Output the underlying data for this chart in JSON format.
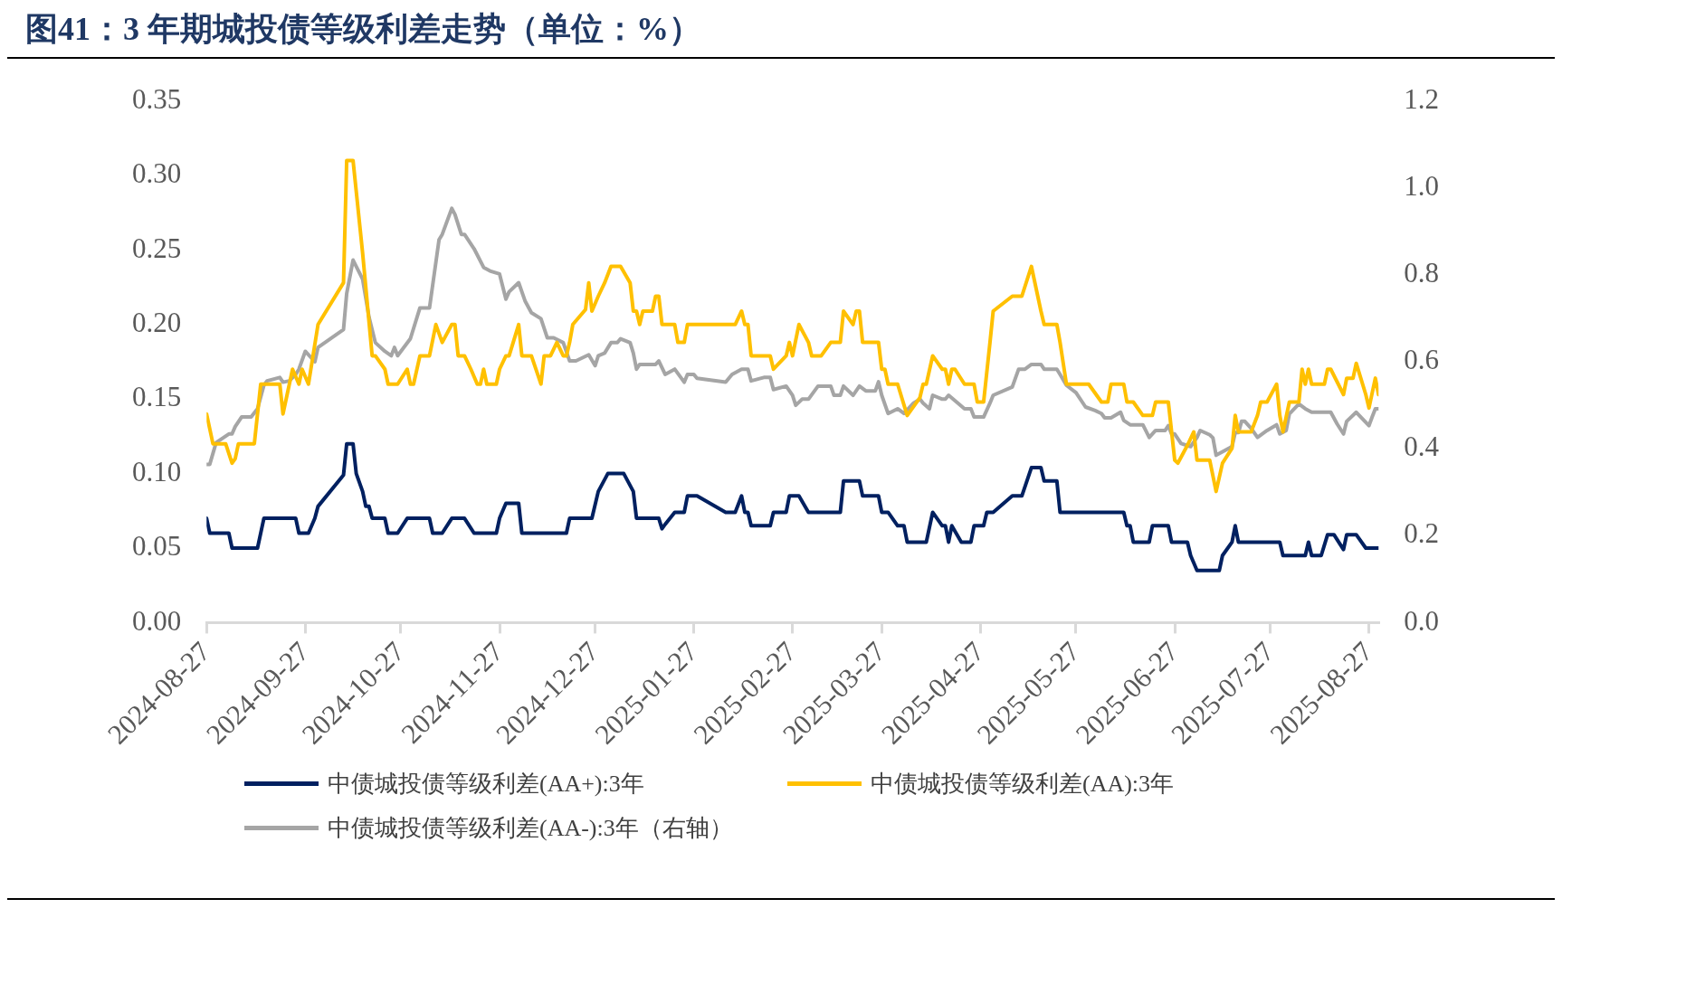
{
  "chart_data": {
    "type": "line",
    "title": "图41：3 年期城投债等级利差走势（单位：%）",
    "xlim": [
      "2024-08-27",
      "2025-08-30"
    ],
    "xticks": [
      "2024-08-27",
      "2024-09-27",
      "2024-10-27",
      "2024-11-27",
      "2024-12-27",
      "2025-01-27",
      "2025-02-27",
      "2025-03-27",
      "2025-04-27",
      "2025-05-27",
      "2025-06-27",
      "2025-07-27",
      "2025-08-27"
    ],
    "ylim": [
      0,
      0.35
    ],
    "yticks": [
      {
        "value": 0,
        "label": "0.00"
      },
      {
        "value": 0.05,
        "label": "0.05"
      },
      {
        "value": 0.1,
        "label": "0.10"
      },
      {
        "value": 0.15,
        "label": "0.15"
      },
      {
        "value": 0.2,
        "label": "0.20"
      },
      {
        "value": 0.25,
        "label": "0.25"
      },
      {
        "value": 0.3,
        "label": "0.30"
      },
      {
        "value": 0.35,
        "label": "0.35"
      }
    ],
    "y2lim": [
      0,
      1.2
    ],
    "y2ticks": [
      {
        "value": 0,
        "label": "0.0"
      },
      0.2,
      0.4,
      0.6,
      0.8,
      {
        "value": 1,
        "label": "1.0"
      },
      1.2
    ],
    "grid": false,
    "legend": "bottom",
    "line_style": "solid",
    "marker": "none",
    "series": [
      {
        "name": "中债城投债等级利差(AA+):3年",
        "color": "#002060",
        "x": [
          "2024-08-27",
          "2024-08-28",
          "2024-09-03",
          "2024-09-04",
          "2024-09-12",
          "2024-09-14",
          "2024-09-24",
          "2024-09-25",
          "2024-09-28",
          "2024-09-30",
          "2024-10-01",
          "2024-10-09",
          "2024-10-10",
          "2024-10-12",
          "2024-10-13",
          "2024-10-15",
          "2024-10-16",
          "2024-10-17",
          "2024-10-18",
          "2024-10-22",
          "2024-10-23",
          "2024-10-26",
          "2024-10-29",
          "2024-11-05",
          "2024-11-06",
          "2024-11-09",
          "2024-11-12",
          "2024-11-16",
          "2024-11-19",
          "2024-11-26",
          "2024-11-27",
          "2024-11-29",
          "2024-12-03",
          "2024-12-04",
          "2024-12-18",
          "2024-12-19",
          "2024-12-26",
          "2024-12-28",
          "2024-12-31",
          "2025-01-05",
          "2025-01-08",
          "2025-01-09",
          "2025-01-16",
          "2025-01-17",
          "2025-01-18",
          "2025-01-21",
          "2025-01-24",
          "2025-01-25",
          "2025-01-28",
          "2025-02-06",
          "2025-02-09",
          "2025-02-11",
          "2025-02-12",
          "2025-02-13",
          "2025-02-14",
          "2025-02-20",
          "2025-02-21",
          "2025-02-25",
          "2025-02-26",
          "2025-03-01",
          "2025-03-04",
          "2025-03-14",
          "2025-03-15",
          "2025-03-20",
          "2025-03-21",
          "2025-03-26",
          "2025-03-27",
          "2025-03-29",
          "2025-04-01",
          "2025-04-03",
          "2025-04-04",
          "2025-04-10",
          "2025-04-12",
          "2025-04-15",
          "2025-04-16",
          "2025-04-17",
          "2025-04-18",
          "2025-04-21",
          "2025-04-24",
          "2025-04-25",
          "2025-04-28",
          "2025-04-29",
          "2025-05-01",
          "2025-05-07",
          "2025-05-10",
          "2025-05-13",
          "2025-05-16",
          "2025-05-17",
          "2025-05-21",
          "2025-05-22",
          "2025-06-11",
          "2025-06-12",
          "2025-06-13",
          "2025-06-14",
          "2025-06-19",
          "2025-06-20",
          "2025-06-25",
          "2025-06-26",
          "2025-07-01",
          "2025-07-02",
          "2025-07-04",
          "2025-07-11",
          "2025-07-12",
          "2025-07-15",
          "2025-07-16",
          "2025-07-17",
          "2025-07-30",
          "2025-07-31",
          "2025-08-07",
          "2025-08-08",
          "2025-08-09",
          "2025-08-12",
          "2025-08-14",
          "2025-08-16",
          "2025-08-19",
          "2025-08-20",
          "2025-08-23",
          "2025-08-26",
          "2025-08-30"
        ],
        "values": [
          0.07,
          0.06,
          0.06,
          0.05,
          0.05,
          0.07,
          0.07,
          0.06,
          0.06,
          0.07,
          0.078,
          0.099,
          0.12,
          0.12,
          0.1,
          0.088,
          0.078,
          0.078,
          0.07,
          0.07,
          0.06,
          0.06,
          0.07,
          0.07,
          0.06,
          0.06,
          0.07,
          0.07,
          0.06,
          0.06,
          0.07,
          0.08,
          0.08,
          0.06,
          0.06,
          0.07,
          0.07,
          0.088,
          0.1,
          0.1,
          0.088,
          0.07,
          0.07,
          0.063,
          0.066,
          0.074,
          0.074,
          0.085,
          0.085,
          0.074,
          0.074,
          0.085,
          0.074,
          0.074,
          0.065,
          0.065,
          0.074,
          0.074,
          0.085,
          0.085,
          0.074,
          0.074,
          0.095,
          0.095,
          0.085,
          0.085,
          0.074,
          0.074,
          0.065,
          0.065,
          0.054,
          0.054,
          0.074,
          0.065,
          0.065,
          0.054,
          0.065,
          0.054,
          0.054,
          0.065,
          0.065,
          0.074,
          0.074,
          0.085,
          0.085,
          0.104,
          0.104,
          0.095,
          0.095,
          0.074,
          0.074,
          0.065,
          0.065,
          0.054,
          0.054,
          0.065,
          0.065,
          0.054,
          0.054,
          0.045,
          0.035,
          0.035,
          0.045,
          0.054,
          0.065,
          0.054,
          0.054,
          0.045,
          0.045,
          0.054,
          0.045,
          0.045,
          0.059,
          0.059,
          0.049,
          0.059,
          0.059,
          0.05,
          0.05
        ]
      },
      {
        "name": "中债城投债等级利差(AA):3年",
        "color": "#ffc000",
        "x": [
          "2024-08-27",
          "2024-08-29",
          "2024-09-02",
          "2024-09-04",
          "2024-09-05",
          "2024-09-06",
          "2024-09-11",
          "2024-09-13",
          "2024-09-19",
          "2024-09-20",
          "2024-09-23",
          "2024-09-25",
          "2024-09-26",
          "2024-09-28",
          "2024-10-01",
          "2024-10-09",
          "2024-10-10",
          "2024-10-12",
          "2024-10-15",
          "2024-10-18",
          "2024-10-19",
          "2024-10-22",
          "2024-10-23",
          "2024-10-26",
          "2024-10-29",
          "2024-10-30",
          "2024-10-31",
          "2024-11-02",
          "2024-11-05",
          "2024-11-07",
          "2024-11-09",
          "2024-11-12",
          "2024-11-13",
          "2024-11-14",
          "2024-11-16",
          "2024-11-18",
          "2024-11-20",
          "2024-11-21",
          "2024-11-22",
          "2024-11-23",
          "2024-11-26",
          "2024-11-27",
          "2024-11-29",
          "2024-11-30",
          "2024-12-03",
          "2024-12-04",
          "2024-12-07",
          "2024-12-10",
          "2024-12-11",
          "2024-12-13",
          "2024-12-15",
          "2024-12-17",
          "2024-12-18",
          "2024-12-19",
          "2024-12-20",
          "2024-12-24",
          "2024-12-25",
          "2024-12-26",
          "2024-12-28",
          "2024-12-30",
          "2025-01-01",
          "2025-01-04",
          "2025-01-07",
          "2025-01-08",
          "2025-01-09",
          "2025-01-10",
          "2025-01-11",
          "2025-01-14",
          "2025-01-15",
          "2025-01-16",
          "2025-01-17",
          "2025-01-21",
          "2025-01-22",
          "2025-01-24",
          "2025-01-25",
          "2025-02-09",
          "2025-02-11",
          "2025-02-12",
          "2025-02-13",
          "2025-02-14",
          "2025-02-20",
          "2025-02-21",
          "2025-02-25",
          "2025-02-26",
          "2025-02-27",
          "2025-03-01",
          "2025-03-04",
          "2025-03-05",
          "2025-03-08",
          "2025-03-11",
          "2025-03-14",
          "2025-03-15",
          "2025-03-18",
          "2025-03-19",
          "2025-03-20",
          "2025-03-21",
          "2025-03-26",
          "2025-03-27",
          "2025-03-28",
          "2025-03-29",
          "2025-04-01",
          "2025-04-04",
          "2025-04-08",
          "2025-04-09",
          "2025-04-10",
          "2025-04-12",
          "2025-04-15",
          "2025-04-16",
          "2025-04-17",
          "2025-04-18",
          "2025-04-19",
          "2025-04-22",
          "2025-04-25",
          "2025-04-26",
          "2025-04-28",
          "2025-04-30",
          "2025-05-01",
          "2025-05-07",
          "2025-05-10",
          "2025-05-13",
          "2025-05-15",
          "2025-05-16",
          "2025-05-17",
          "2025-05-21",
          "2025-05-22",
          "2025-05-24",
          "2025-05-31",
          "2025-06-04",
          "2025-06-06",
          "2025-06-07",
          "2025-06-11",
          "2025-06-12",
          "2025-06-14",
          "2025-06-17",
          "2025-06-20",
          "2025-06-21",
          "2025-06-25",
          "2025-06-27",
          "2025-06-28",
          "2025-07-01",
          "2025-07-03",
          "2025-07-04",
          "2025-07-08",
          "2025-07-10",
          "2025-07-12",
          "2025-07-15",
          "2025-07-16",
          "2025-07-17",
          "2025-07-21",
          "2025-07-23",
          "2025-07-24",
          "2025-07-26",
          "2025-07-29",
          "2025-07-30",
          "2025-07-31",
          "2025-08-02",
          "2025-08-05",
          "2025-08-06",
          "2025-08-07",
          "2025-08-08",
          "2025-08-09",
          "2025-08-13",
          "2025-08-14",
          "2025-08-15",
          "2025-08-19",
          "2025-08-20",
          "2025-08-22",
          "2025-08-23",
          "2025-08-26",
          "2025-08-27",
          "2025-08-29",
          "2025-08-30"
        ],
        "values": [
          0.14,
          0.12,
          0.12,
          0.107,
          0.11,
          0.12,
          0.12,
          0.16,
          0.16,
          0.14,
          0.17,
          0.16,
          0.17,
          0.16,
          0.2,
          0.228,
          0.31,
          0.31,
          0.248,
          0.179,
          0.179,
          0.17,
          0.16,
          0.16,
          0.17,
          0.16,
          0.16,
          0.179,
          0.179,
          0.2,
          0.188,
          0.2,
          0.2,
          0.179,
          0.179,
          0.17,
          0.16,
          0.16,
          0.17,
          0.16,
          0.16,
          0.17,
          0.179,
          0.179,
          0.2,
          0.179,
          0.179,
          0.16,
          0.179,
          0.179,
          0.188,
          0.179,
          0.179,
          0.188,
          0.2,
          0.21,
          0.228,
          0.209,
          0.219,
          0.228,
          0.239,
          0.239,
          0.228,
          0.209,
          0.209,
          0.2,
          0.209,
          0.209,
          0.219,
          0.219,
          0.2,
          0.2,
          0.188,
          0.188,
          0.2,
          0.2,
          0.209,
          0.2,
          0.2,
          0.179,
          0.179,
          0.17,
          0.179,
          0.188,
          0.179,
          0.2,
          0.188,
          0.179,
          0.179,
          0.188,
          0.188,
          0.209,
          0.2,
          0.209,
          0.209,
          0.188,
          0.188,
          0.17,
          0.17,
          0.16,
          0.16,
          0.139,
          0.151,
          0.16,
          0.16,
          0.179,
          0.17,
          0.17,
          0.16,
          0.17,
          0.17,
          0.16,
          0.16,
          0.148,
          0.148,
          0.188,
          0.209,
          0.219,
          0.219,
          0.239,
          0.219,
          0.209,
          0.2,
          0.2,
          0.188,
          0.16,
          0.16,
          0.148,
          0.148,
          0.16,
          0.16,
          0.148,
          0.148,
          0.139,
          0.139,
          0.148,
          0.148,
          0.109,
          0.107,
          0.119,
          0.128,
          0.109,
          0.109,
          0.088,
          0.107,
          0.117,
          0.139,
          0.128,
          0.128,
          0.139,
          0.148,
          0.148,
          0.16,
          0.139,
          0.128,
          0.148,
          0.148,
          0.17,
          0.16,
          0.17,
          0.16,
          0.16,
          0.17,
          0.17,
          0.153,
          0.164,
          0.164,
          0.174,
          0.153,
          0.144,
          0.164,
          0.153
        ]
      },
      {
        "name": "中债城投债等级利差(AA-):3年（右轴）",
        "color": "#a5a5a5",
        "axis": "y2",
        "x": [
          "2024-08-27",
          "2024-08-28",
          "2024-08-30",
          "2024-09-03",
          "2024-09-04",
          "2024-09-05",
          "2024-09-07",
          "2024-09-10",
          "2024-09-12",
          "2024-09-14",
          "2024-09-15",
          "2024-09-19",
          "2024-09-20",
          "2024-09-22",
          "2024-09-24",
          "2024-09-25",
          "2024-09-27",
          "2024-09-30",
          "2024-10-01",
          "2024-10-09",
          "2024-10-10",
          "2024-10-12",
          "2024-10-15",
          "2024-10-17",
          "2024-10-19",
          "2024-10-22",
          "2024-10-24",
          "2024-10-25",
          "2024-10-26",
          "2024-10-30",
          "2024-11-02",
          "2024-11-05",
          "2024-11-08",
          "2024-11-09",
          "2024-11-12",
          "2024-11-13",
          "2024-11-15",
          "2024-11-16",
          "2024-11-19",
          "2024-11-22",
          "2024-11-24",
          "2024-11-27",
          "2024-11-29",
          "2024-11-30",
          "2024-12-03",
          "2024-12-05",
          "2024-12-07",
          "2024-12-10",
          "2024-12-12",
          "2024-12-14",
          "2024-12-17",
          "2024-12-19",
          "2024-12-21",
          "2024-12-25",
          "2024-12-27",
          "2024-12-28",
          "2024-12-30",
          "2025-01-01",
          "2025-01-03",
          "2025-01-04",
          "2025-01-07",
          "2025-01-08",
          "2025-01-09",
          "2025-01-10",
          "2025-01-15",
          "2025-01-16",
          "2025-01-18",
          "2025-01-21",
          "2025-01-24",
          "2025-01-25",
          "2025-01-27",
          "2025-01-28",
          "2025-02-06",
          "2025-02-08",
          "2025-02-11",
          "2025-02-13",
          "2025-02-14",
          "2025-02-18",
          "2025-02-20",
          "2025-02-21",
          "2025-02-25",
          "2025-02-27",
          "2025-02-28",
          "2025-03-02",
          "2025-03-04",
          "2025-03-07",
          "2025-03-11",
          "2025-03-12",
          "2025-03-14",
          "2025-03-15",
          "2025-03-18",
          "2025-03-20",
          "2025-03-22",
          "2025-03-25",
          "2025-03-26",
          "2025-03-27",
          "2025-03-29",
          "2025-04-01",
          "2025-04-03",
          "2025-04-06",
          "2025-04-08",
          "2025-04-09",
          "2025-04-11",
          "2025-04-12",
          "2025-04-15",
          "2025-04-16",
          "2025-04-17",
          "2025-04-22",
          "2025-04-24",
          "2025-04-25",
          "2025-04-28",
          "2025-04-30",
          "2025-05-01",
          "2025-05-07",
          "2025-05-09",
          "2025-05-11",
          "2025-05-13",
          "2025-05-16",
          "2025-05-17",
          "2025-05-21",
          "2025-05-22",
          "2025-05-24",
          "2025-05-27",
          "2025-05-30",
          "2025-06-02",
          "2025-06-04",
          "2025-06-05",
          "2025-06-07",
          "2025-06-10",
          "2025-06-11",
          "2025-06-13",
          "2025-06-17",
          "2025-06-19",
          "2025-06-21",
          "2025-06-24",
          "2025-06-25",
          "2025-06-26",
          "2025-06-27",
          "2025-06-29",
          "2025-07-02",
          "2025-07-04",
          "2025-07-05",
          "2025-07-08",
          "2025-07-09",
          "2025-07-10",
          "2025-07-12",
          "2025-07-15",
          "2025-07-16",
          "2025-07-17",
          "2025-07-18",
          "2025-07-19",
          "2025-07-21",
          "2025-07-23",
          "2025-07-26",
          "2025-07-29",
          "2025-07-30",
          "2025-08-01",
          "2025-08-02",
          "2025-08-05",
          "2025-08-07",
          "2025-08-09",
          "2025-08-15",
          "2025-08-17",
          "2025-08-19",
          "2025-08-20",
          "2025-08-23",
          "2025-08-27",
          "2025-08-28",
          "2025-08-29",
          "2025-08-30"
        ],
        "values": [
          0.364,
          0.364,
          0.414,
          0.434,
          0.434,
          0.451,
          0.473,
          0.473,
          0.492,
          0.546,
          0.556,
          0.564,
          0.553,
          0.556,
          0.571,
          0.583,
          0.624,
          0.6,
          0.633,
          0.674,
          0.757,
          0.834,
          0.79,
          0.703,
          0.644,
          0.624,
          0.614,
          0.633,
          0.614,
          0.653,
          0.724,
          0.724,
          0.881,
          0.893,
          0.953,
          0.939,
          0.893,
          0.893,
          0.86,
          0.817,
          0.809,
          0.802,
          0.744,
          0.761,
          0.782,
          0.74,
          0.713,
          0.699,
          0.655,
          0.655,
          0.644,
          0.602,
          0.602,
          0.616,
          0.591,
          0.614,
          0.62,
          0.644,
          0.644,
          0.653,
          0.644,
          0.62,
          0.583,
          0.594,
          0.594,
          0.602,
          0.571,
          0.583,
          0.553,
          0.571,
          0.571,
          0.562,
          0.553,
          0.571,
          0.583,
          0.583,
          0.556,
          0.564,
          0.564,
          0.536,
          0.544,
          0.523,
          0.5,
          0.514,
          0.514,
          0.544,
          0.544,
          0.523,
          0.523,
          0.544,
          0.523,
          0.544,
          0.533,
          0.533,
          0.554,
          0.523,
          0.481,
          0.492,
          0.481,
          0.505,
          0.514,
          0.505,
          0.492,
          0.523,
          0.514,
          0.514,
          0.523,
          0.492,
          0.492,
          0.473,
          0.473,
          0.505,
          0.523,
          0.542,
          0.583,
          0.583,
          0.594,
          0.594,
          0.583,
          0.583,
          0.571,
          0.546,
          0.529,
          0.496,
          0.488,
          0.481,
          0.471,
          0.471,
          0.484,
          0.465,
          0.455,
          0.455,
          0.426,
          0.442,
          0.442,
          0.453,
          0.434,
          0.434,
          0.412,
          0.405,
          0.426,
          0.442,
          0.432,
          0.425,
          0.385,
          0.393,
          0.405,
          0.437,
          0.437,
          0.463,
          0.463,
          0.447,
          0.426,
          0.442,
          0.455,
          0.434,
          0.442,
          0.48,
          0.503,
          0.492,
          0.484,
          0.484,
          0.457,
          0.434,
          0.463,
          0.484,
          0.453,
          0.473,
          0.492,
          0.492
        ]
      }
    ]
  }
}
